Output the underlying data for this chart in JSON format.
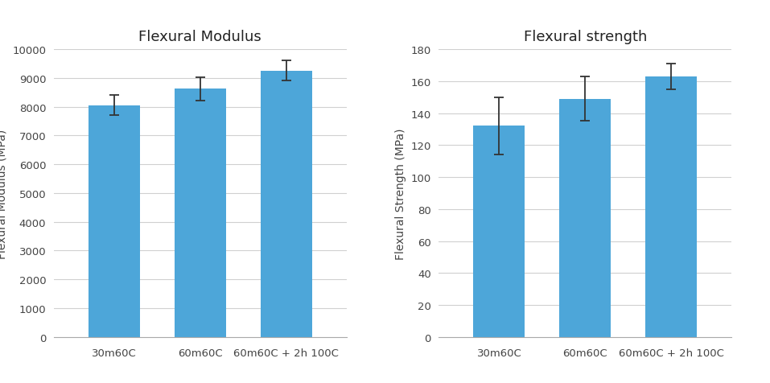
{
  "chart1": {
    "title": "Flexural Modulus",
    "ylabel": "Flexural Modulus (MPa)",
    "categories": [
      "30m60C",
      "60m60C",
      "60m60C + 2h 100C"
    ],
    "values": [
      8050,
      8620,
      9250
    ],
    "errors": [
      350,
      400,
      350
    ],
    "ylim": [
      0,
      10000
    ],
    "yticks": [
      0,
      1000,
      2000,
      3000,
      4000,
      5000,
      6000,
      7000,
      8000,
      9000,
      10000
    ]
  },
  "chart2": {
    "title": "Flexural strength",
    "ylabel": "Flexural Strength (MPa)",
    "categories": [
      "30m60C",
      "60m60C",
      "60m60C + 2h 100C"
    ],
    "values": [
      132,
      149,
      163
    ],
    "errors": [
      18,
      14,
      8
    ],
    "ylim": [
      0,
      180
    ],
    "yticks": [
      0,
      20,
      40,
      60,
      80,
      100,
      120,
      140,
      160,
      180
    ]
  },
  "bar_color": "#4da6d9",
  "bar_width": 0.6,
  "background_color": "#ffffff",
  "grid_color": "#d0d0d0",
  "title_fontsize": 13,
  "label_fontsize": 10,
  "tick_fontsize": 9.5,
  "error_capsize": 4,
  "error_color": "#333333"
}
